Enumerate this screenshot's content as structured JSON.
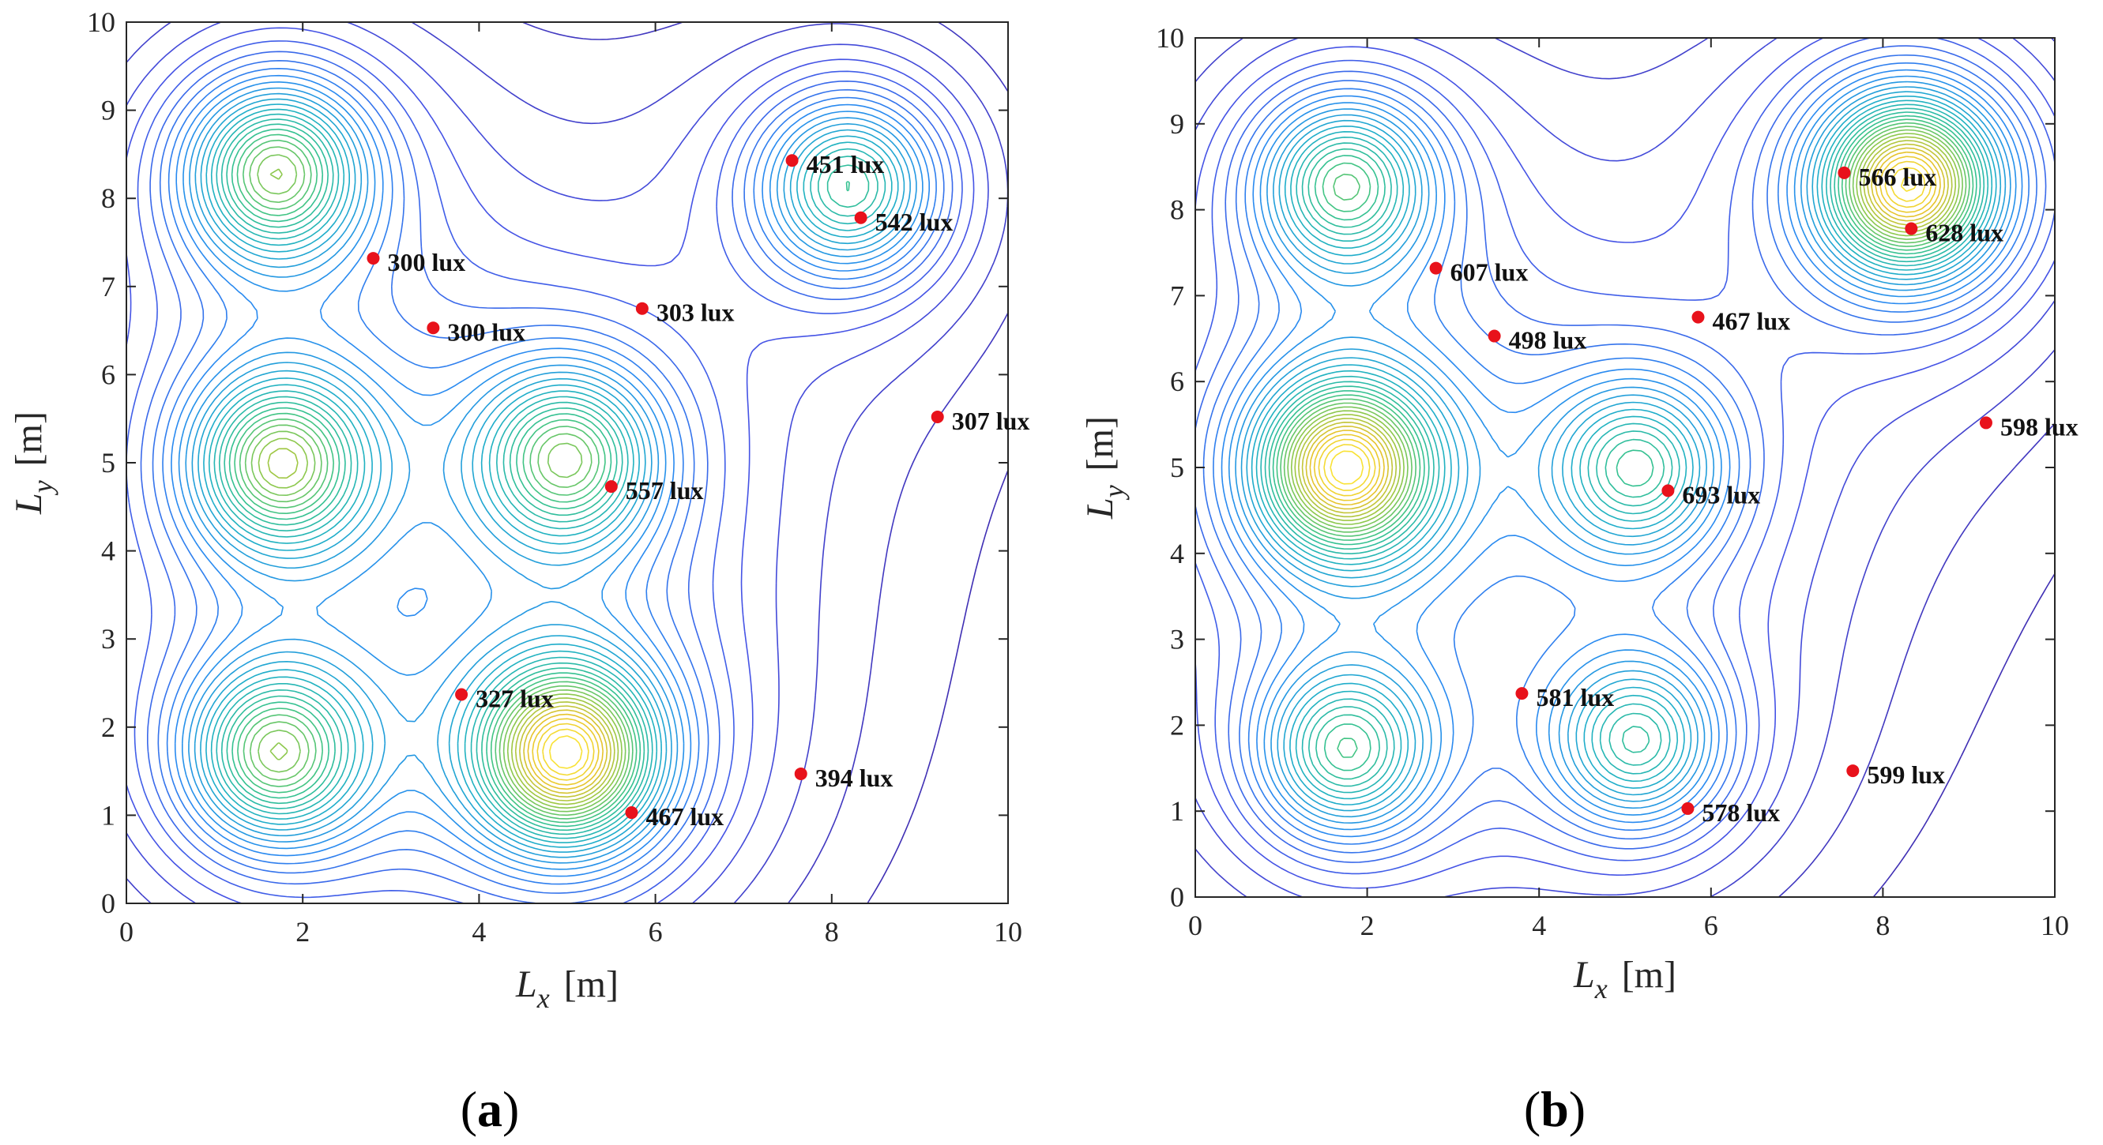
{
  "colors": {
    "marker": "#e8121b",
    "frame": "#262626",
    "contour_low": "#3e26a8",
    "contour_mid": "#2fbf9f",
    "contour_high": "#f9e235"
  },
  "chart_data": [
    {
      "type": "contour",
      "panel_label": "a",
      "xlabel": "L",
      "xlabel_sub": "x",
      "ylabel": "L",
      "ylabel_sub": "y",
      "units": "[m]",
      "xlim": [
        0,
        10
      ],
      "ylim": [
        0,
        10
      ],
      "xticks": [
        "0",
        "2",
        "4",
        "6",
        "8",
        "10"
      ],
      "yticks": [
        "0",
        "1",
        "2",
        "3",
        "4",
        "5",
        "6",
        "7",
        "8",
        "9",
        "10"
      ],
      "sources": [
        {
          "x": 1.7,
          "y": 8.3,
          "strength": 0.72
        },
        {
          "x": 1.75,
          "y": 5.0,
          "strength": 0.7
        },
        {
          "x": 1.7,
          "y": 1.7,
          "strength": 0.68
        },
        {
          "x": 5.0,
          "y": 5.05,
          "strength": 0.64
        },
        {
          "x": 5.0,
          "y": 1.7,
          "strength": 1.0
        },
        {
          "x": 8.2,
          "y": 8.15,
          "strength": 0.6
        }
      ],
      "points": [
        {
          "x": 7.55,
          "y": 8.43,
          "label": "451 lux"
        },
        {
          "x": 8.33,
          "y": 7.78,
          "label": "542 lux"
        },
        {
          "x": 2.8,
          "y": 7.32,
          "label": "300 lux"
        },
        {
          "x": 3.48,
          "y": 6.53,
          "label": "300 lux"
        },
        {
          "x": 5.85,
          "y": 6.75,
          "label": "303 lux"
        },
        {
          "x": 9.2,
          "y": 5.52,
          "label": "307 lux"
        },
        {
          "x": 5.5,
          "y": 4.73,
          "label": "557 lux"
        },
        {
          "x": 3.8,
          "y": 2.37,
          "label": "327 lux"
        },
        {
          "x": 7.65,
          "y": 1.47,
          "label": "394 lux"
        },
        {
          "x": 5.73,
          "y": 1.03,
          "label": "467 lux"
        }
      ]
    },
    {
      "type": "contour",
      "panel_label": "b",
      "xlabel": "L",
      "xlabel_sub": "x",
      "ylabel": "L",
      "ylabel_sub": "y",
      "units": "[m]",
      "xlim": [
        0,
        10
      ],
      "ylim": [
        0,
        10
      ],
      "xticks": [
        "0",
        "2",
        "4",
        "6",
        "8",
        "10"
      ],
      "yticks": [
        "0",
        "1",
        "2",
        "3",
        "4",
        "5",
        "6",
        "7",
        "8",
        "9",
        "10"
      ],
      "sources": [
        {
          "x": 1.75,
          "y": 8.3,
          "strength": 0.6
        },
        {
          "x": 1.75,
          "y": 5.0,
          "strength": 0.95
        },
        {
          "x": 1.75,
          "y": 1.7,
          "strength": 0.55
        },
        {
          "x": 5.15,
          "y": 5.0,
          "strength": 0.5
        },
        {
          "x": 5.15,
          "y": 1.8,
          "strength": 0.5
        },
        {
          "x": 8.3,
          "y": 8.3,
          "strength": 1.0
        }
      ],
      "points": [
        {
          "x": 7.55,
          "y": 8.43,
          "label": "566 lux"
        },
        {
          "x": 8.33,
          "y": 7.78,
          "label": "628 lux"
        },
        {
          "x": 2.8,
          "y": 7.32,
          "label": "607 lux"
        },
        {
          "x": 3.48,
          "y": 6.53,
          "label": "498 lux"
        },
        {
          "x": 5.85,
          "y": 6.75,
          "label": "467 lux"
        },
        {
          "x": 9.2,
          "y": 5.52,
          "label": "598 lux"
        },
        {
          "x": 5.5,
          "y": 4.73,
          "label": "693 lux"
        },
        {
          "x": 3.8,
          "y": 2.37,
          "label": "581 lux"
        },
        {
          "x": 7.65,
          "y": 1.47,
          "label": "599 lux"
        },
        {
          "x": 5.73,
          "y": 1.03,
          "label": "578 lux"
        }
      ]
    }
  ]
}
